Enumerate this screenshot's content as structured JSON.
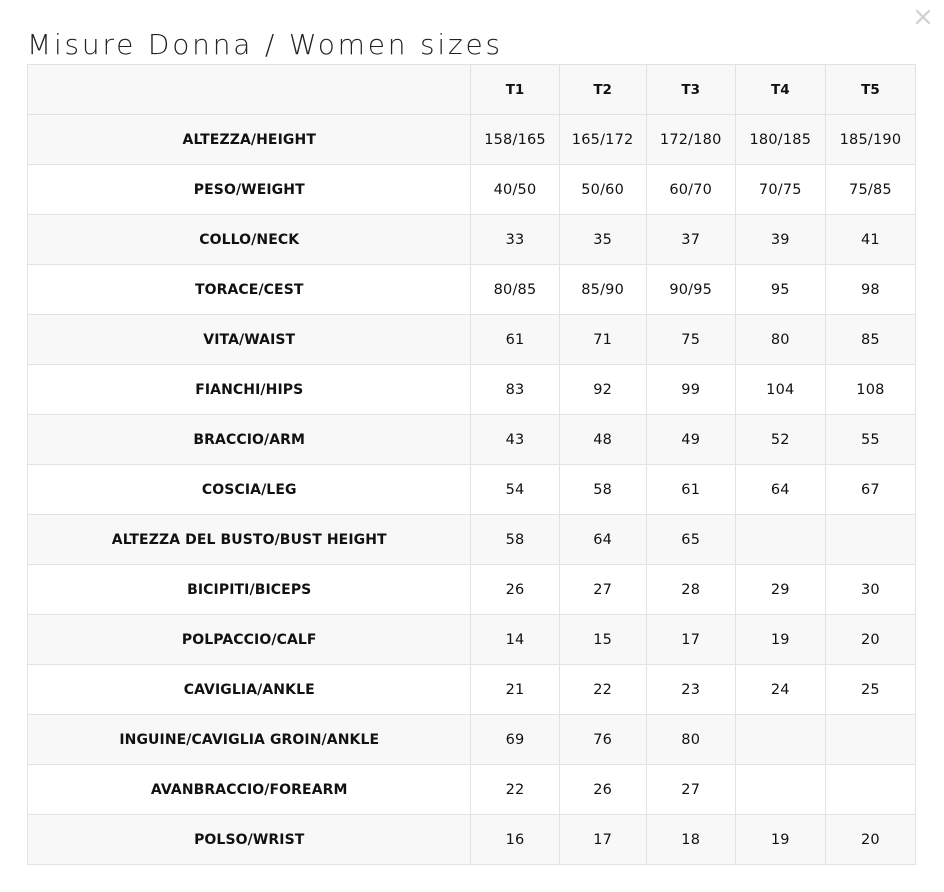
{
  "title": "Misure Donna / Women sizes",
  "close_icon": "close-icon",
  "table": {
    "headers": [
      "",
      "T1",
      "T2",
      "T3",
      "T4",
      "T5"
    ],
    "rows": [
      {
        "label": "ALTEZZA/HEIGHT",
        "values": [
          "158/165",
          "165/172",
          "172/180",
          "180/185",
          "185/190"
        ]
      },
      {
        "label": "PESO/WEIGHT",
        "values": [
          "40/50",
          "50/60",
          "60/70",
          "70/75",
          "75/85"
        ]
      },
      {
        "label": "COLLO/NECK",
        "values": [
          "33",
          "35",
          "37",
          "39",
          "41"
        ]
      },
      {
        "label": "TORACE/CEST",
        "values": [
          "80/85",
          "85/90",
          "90/95",
          "95",
          "98"
        ]
      },
      {
        "label": "VITA/WAIST",
        "values": [
          "61",
          "71",
          "75",
          "80",
          "85"
        ]
      },
      {
        "label": "FIANCHI/HIPS",
        "values": [
          "83",
          "92",
          "99",
          "104",
          "108"
        ]
      },
      {
        "label": "BRACCIO/ARM",
        "values": [
          "43",
          "48",
          "49",
          "52",
          "55"
        ]
      },
      {
        "label": "COSCIA/LEG",
        "values": [
          "54",
          "58",
          "61",
          "64",
          "67"
        ]
      },
      {
        "label": "ALTEZZA DEL BUSTO/BUST HEIGHT",
        "values": [
          "58",
          "64",
          "65",
          "",
          ""
        ]
      },
      {
        "label": "BICIPITI/BICEPS",
        "values": [
          "26",
          "27",
          "28",
          "29",
          "30"
        ]
      },
      {
        "label": "POLPACCIO/CALF",
        "values": [
          "14",
          "15",
          "17",
          "19",
          "20"
        ]
      },
      {
        "label": "CAVIGLIA/ANKLE",
        "values": [
          "21",
          "22",
          "23",
          "24",
          "25"
        ]
      },
      {
        "label": "INGUINE/CAVIGLIA GROIN/ANKLE",
        "values": [
          "69",
          "76",
          "80",
          "",
          ""
        ]
      },
      {
        "label": "AVANBRACCIO/FOREARM",
        "values": [
          "22",
          "26",
          "27",
          "",
          ""
        ]
      },
      {
        "label": "POLSO/WRIST",
        "values": [
          "16",
          "17",
          "18",
          "19",
          "20"
        ]
      }
    ]
  },
  "colors": {
    "border": "#e2e2e2",
    "row_shade": "#f8f8f8",
    "close": "#d0d0d0"
  }
}
